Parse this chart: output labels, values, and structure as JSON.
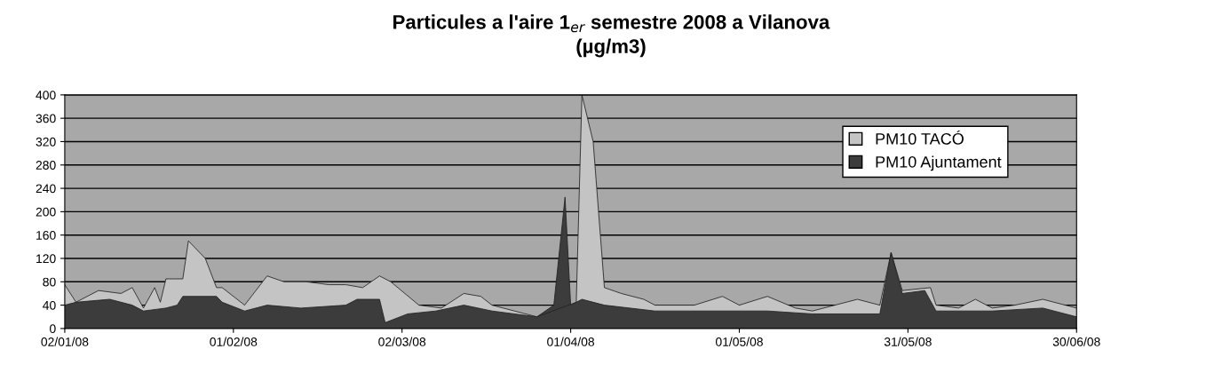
{
  "chart_data": {
    "type": "area",
    "title": "Particules a l'aire 1$_{er}$ semestre 2008 a Vilanova\n(µg/m3)",
    "series": [
      {
        "name": "PM10 TACÓ",
        "color": "#c4c4c4",
        "x": [
          "2008-01-02",
          "2008-01-04",
          "2008-01-08",
          "2008-01-12",
          "2008-01-14",
          "2008-01-16",
          "2008-01-18",
          "2008-01-19",
          "2008-01-20",
          "2008-01-23",
          "2008-01-24",
          "2008-01-27",
          "2008-01-29",
          "2008-01-30",
          "2008-02-03",
          "2008-02-07",
          "2008-02-10",
          "2008-02-14",
          "2008-02-18",
          "2008-02-21",
          "2008-02-24",
          "2008-02-27",
          "2008-02-29",
          "2008-03-05",
          "2008-03-09",
          "2008-03-13",
          "2008-03-16",
          "2008-03-18",
          "2008-03-22",
          "2008-03-26",
          "2008-04-02",
          "2008-04-03",
          "2008-04-05",
          "2008-04-07",
          "2008-04-10",
          "2008-04-14",
          "2008-04-16",
          "2008-04-23",
          "2008-04-28",
          "2008-05-01",
          "2008-05-06",
          "2008-05-11",
          "2008-05-14",
          "2008-05-22",
          "2008-05-26",
          "2008-05-28",
          "2008-05-30",
          "2008-06-04",
          "2008-06-05",
          "2008-06-09",
          "2008-06-12",
          "2008-06-15",
          "2008-06-19",
          "2008-06-24",
          "2008-06-30"
        ],
        "values": [
          75,
          45,
          65,
          60,
          70,
          35,
          70,
          45,
          85,
          85,
          150,
          120,
          70,
          70,
          40,
          90,
          80,
          80,
          75,
          75,
          70,
          90,
          80,
          40,
          35,
          60,
          55,
          40,
          30,
          20,
          45,
          400,
          320,
          70,
          60,
          50,
          40,
          40,
          55,
          40,
          55,
          35,
          30,
          50,
          40,
          130,
          65,
          70,
          40,
          35,
          50,
          35,
          40,
          50,
          35
        ]
      },
      {
        "name": "PM10 Ajuntament",
        "color": "#3c3c3c",
        "x": [
          "2008-01-02",
          "2008-01-04",
          "2008-01-10",
          "2008-01-14",
          "2008-01-16",
          "2008-01-20",
          "2008-01-22",
          "2008-01-23",
          "2008-01-29",
          "2008-01-30",
          "2008-02-03",
          "2008-02-07",
          "2008-02-13",
          "2008-02-21",
          "2008-02-23",
          "2008-02-27",
          "2008-02-28",
          "2008-03-03",
          "2008-03-08",
          "2008-03-13",
          "2008-03-18",
          "2008-03-26",
          "2008-03-29",
          "2008-03-31",
          "2008-04-01",
          "2008-04-03",
          "2008-04-07",
          "2008-04-16",
          "2008-05-06",
          "2008-05-14",
          "2008-05-26",
          "2008-05-28",
          "2008-05-30",
          "2008-06-03",
          "2008-06-05",
          "2008-06-15",
          "2008-06-24",
          "2008-06-30"
        ],
        "values": [
          40,
          45,
          50,
          40,
          30,
          35,
          40,
          55,
          55,
          45,
          30,
          40,
          35,
          40,
          50,
          50,
          10,
          25,
          30,
          40,
          30,
          20,
          40,
          225,
          40,
          50,
          40,
          30,
          30,
          25,
          25,
          130,
          60,
          65,
          30,
          30,
          35,
          20
        ]
      }
    ],
    "xlim": [
      "2008-01-02",
      "2008-06-30"
    ],
    "xticks": [
      {
        "value": "2008-01-02",
        "label": "02/01/08"
      },
      {
        "value": "2008-02-01",
        "label": "01/02/08"
      },
      {
        "value": "2008-03-02",
        "label": "02/03/08"
      },
      {
        "value": "2008-04-01",
        "label": "01/04/08"
      },
      {
        "value": "2008-05-01",
        "label": "01/05/08"
      },
      {
        "value": "2008-05-31",
        "label": "31/05/08"
      },
      {
        "value": "2008-06-30",
        "label": "30/06/08"
      }
    ],
    "ylim": [
      0,
      400
    ],
    "yticks": [
      0,
      40,
      80,
      120,
      160,
      200,
      240,
      280,
      320,
      360,
      400
    ],
    "grid": "y",
    "legend": "top right"
  }
}
